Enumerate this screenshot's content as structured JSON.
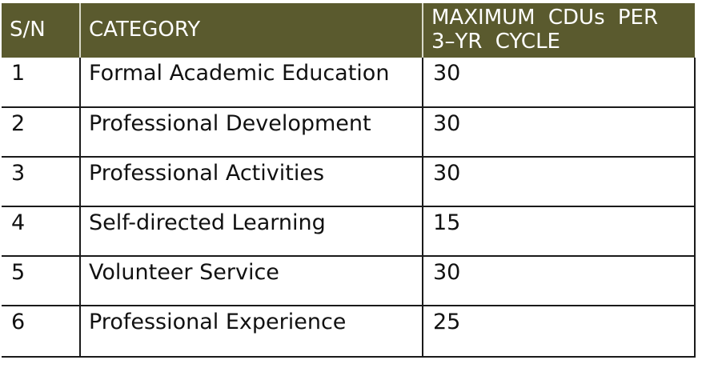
{
  "table": {
    "headers": {
      "sn": "S/N",
      "category": "CATEGORY",
      "maximum_line1": "MAXIMUM CDUs PER",
      "maximum_line2": "3–YR CYCLE"
    },
    "rows": [
      {
        "sn": "1",
        "category": "Formal Academic Education",
        "max": "30"
      },
      {
        "sn": "2",
        "category": "Professional Development",
        "max": "30"
      },
      {
        "sn": "3",
        "category": "Professional Activities",
        "max": "30"
      },
      {
        "sn": "4",
        "category": "Self-directed Learning",
        "max": "15"
      },
      {
        "sn": "5",
        "category": "Volunteer Service",
        "max": "30"
      },
      {
        "sn": "6",
        "category": "Professional Experience",
        "max": "25"
      }
    ]
  },
  "colors": {
    "header_bg": "#5a5a2e",
    "header_text": "#ffffff",
    "border": "#1a1a1a"
  }
}
